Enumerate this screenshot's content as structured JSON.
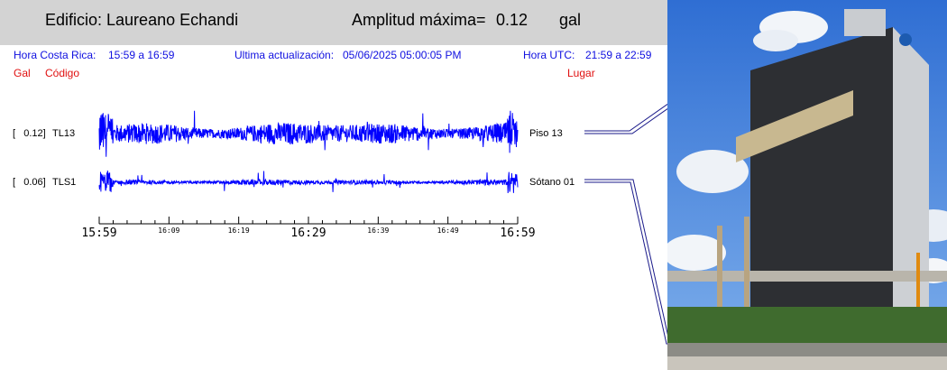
{
  "header": {
    "building_label": "Edificio: Laureano Echandi",
    "amplitude_label": "Amplitud máxima=",
    "amplitude_value": "0.12",
    "amplitude_unit": "gal"
  },
  "info": {
    "cr_label": "Hora Costa Rica:",
    "cr_range": "15:59 a 16:59",
    "update_label": "Ultima actualización:",
    "update_value": "05/06/2025 05:00:05 PM",
    "utc_label": "Hora UTC:",
    "utc_range": "21:59 a 22:59"
  },
  "legend": {
    "gal": "Gal",
    "code": "Código",
    "place": "Lugar"
  },
  "colors": {
    "trace": "#0000ff",
    "info_text": "#1010e0",
    "legend_text": "#e01010",
    "header_bg": "#d3d3d3"
  },
  "chart_data": {
    "type": "line",
    "x_unit": "minutes",
    "x_range": [
      "15:59",
      "16:59"
    ],
    "major_ticks": [
      "15:59",
      "16:29",
      "16:59"
    ],
    "minor_ticks": [
      "16:09",
      "16:19",
      "16:39",
      "16:49"
    ],
    "channels": [
      {
        "amplitude_label": "[   0.12]",
        "code": "TL13",
        "place": "Piso 13",
        "max_gal": 0.12,
        "typical_gal": 0.05
      },
      {
        "amplitude_label": "[   0.06]",
        "code": "TLS1",
        "place": "Sótano 01",
        "max_gal": 0.06,
        "typical_gal": 0.012
      }
    ]
  }
}
